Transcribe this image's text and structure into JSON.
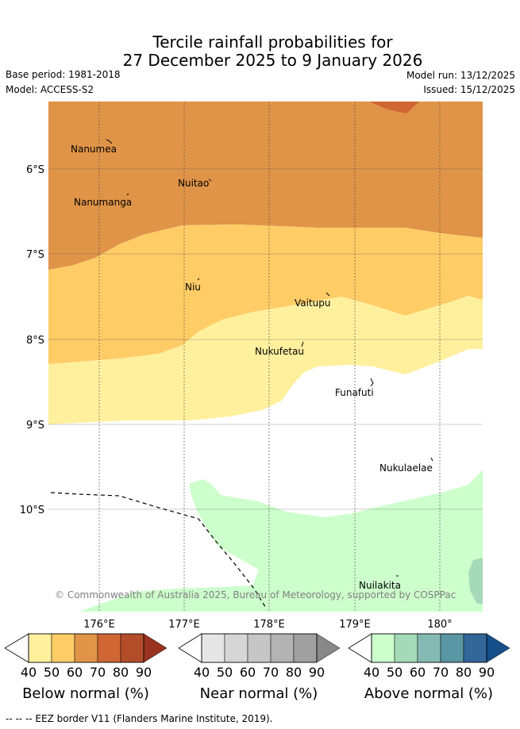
{
  "title_line1": "Tercile rainfall probabilities for",
  "title_line2": "27 December 2025 to 9 January 2026",
  "base_period": "Base period: 1981-2018",
  "model": "Model: ACCESS-S2",
  "model_run": "Model run: 13/12/2025",
  "issued": "Issued: 15/12/2025",
  "lat_labels": [
    "6°S",
    "7°S",
    "8°S",
    "9°S",
    "10°S"
  ],
  "lon_labels": [
    "176°E",
    "177°E",
    "178°E",
    "179°E",
    "180°"
  ],
  "places": [
    "Nanumea",
    "Nuitao",
    "Nanumanga",
    "Niu",
    "Vaitupu",
    "Nukufetau",
    "Funafuti",
    "Nukulaelae",
    "Nuilakita"
  ],
  "copyright": "© Commonwealth of Australia 2025, Bureau of Meteorology, supported by COSPPac",
  "colorbars": [
    {
      "title": "Below normal (%)",
      "labels": [
        "40",
        "50",
        "60",
        "70",
        "80",
        "90"
      ],
      "colors": [
        "#fff09e",
        "#ffcc66",
        "#e09448",
        "#cf6633",
        "#b34d29",
        "#99331f"
      ]
    },
    {
      "title": "Near normal (%)",
      "labels": [
        "40",
        "50",
        "60",
        "70",
        "80",
        "90"
      ],
      "colors": [
        "#e6e6e6",
        "#d6d6d6",
        "#c6c6c6",
        "#b3b3b3",
        "#a0a0a0",
        "#888888"
      ]
    },
    {
      "title": "Above normal (%)",
      "labels": [
        "40",
        "50",
        "60",
        "70",
        "80",
        "90"
      ],
      "colors": [
        "#ccffcc",
        "#a6d9b8",
        "#85bab3",
        "#5a96a3",
        "#336699",
        "#164f8a"
      ]
    }
  ],
  "footer": "--  --  -- EEZ border V11 (Flanders Marine Institute, 2019)."
}
